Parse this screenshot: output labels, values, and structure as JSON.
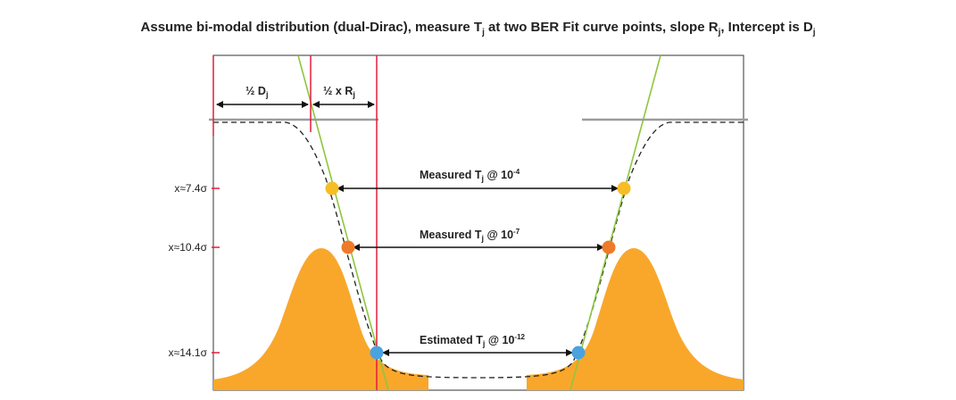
{
  "title": {
    "t1": "Assume bi-modal distribution (dual-Dirac), measure T",
    "s1": "j",
    "t2": " at two BER Fit curve points, slope R",
    "s2": "j",
    "t3": ", Intercept is D",
    "s3": "j"
  },
  "labels": {
    "half_d_main": "½ D",
    "half_d_sub": "j",
    "half_r_main": "½ x R",
    "half_r_sub": "j",
    "meas1_main": "Measured T",
    "meas1_sub": "j",
    "meas1_at": " @ 10",
    "meas1_exp": "-4",
    "meas2_main": "Measured T",
    "meas2_sub": "j",
    "meas2_at": " @ 10",
    "meas2_exp": "-7",
    "est_main": "Estimated T",
    "est_sub": "j",
    "est_at": " @ 10",
    "est_exp": "-12"
  },
  "y_labels": {
    "y1": "x≈7.4σ",
    "y2": "x≈10.4σ",
    "y3": "x≈14.1σ"
  },
  "colors": {
    "orange_fill": "#f9a72b",
    "green_line": "#8dc63f",
    "red_line": "#e31e3b",
    "yellow_point": "#f7bd27",
    "orange_point": "#ef7a2a",
    "blue_point": "#4aa3df",
    "gray_line": "#9c9c9c"
  }
}
